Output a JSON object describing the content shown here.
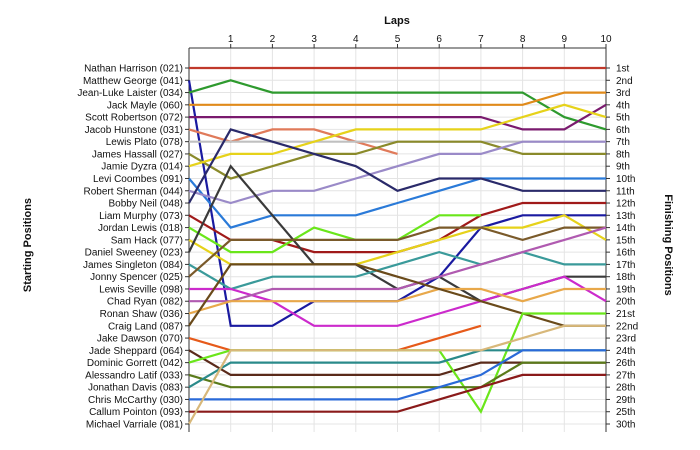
{
  "chart_data": {
    "type": "line",
    "title": "",
    "xlabel": "Laps",
    "ylabel_left": "Starting Positions",
    "ylabel_right": "Finishing Positions",
    "x": [
      0,
      1,
      2,
      3,
      4,
      5,
      6,
      7,
      8,
      9,
      10
    ],
    "x_tick_labels": [
      "1",
      "2",
      "3",
      "4",
      "5",
      "6",
      "7",
      "8",
      "9",
      "10"
    ],
    "ylim": [
      1,
      30
    ],
    "starting_labels": [
      "Nathan Harrison (021)",
      "Matthew George (041)",
      "Jean-Luke Laister (034)",
      "Jack Mayle (060)",
      "Scott Robertson (072)",
      "Jacob Hunstone (031)",
      "Lewis Plato (078)",
      "James Hassall (027)",
      "Jamie Dyzra (014)",
      "Levi Coombes (091)",
      "Robert Sherman (044)",
      "Bobby Neil (048)",
      "Liam Murphy (073)",
      "Jordan Lewis (018)",
      "Sam Hack (077)",
      "Daniel Sweeney (023)",
      "James Singleton (084)",
      "Jonny Spencer (025)",
      "Lewis Seville (098)",
      "Chad Ryan (082)",
      "Ronan Shaw (036)",
      "Craig Land (087)",
      "Jake Dawson (070)",
      "Jade Sheppard (064)",
      "Dominic Gorrett (042)",
      "Alessandro Latif (033)",
      "Jonathan Davis (083)",
      "Chris McCarthy (030)",
      "Callum Pointon (093)",
      "Michael Varriale (081)"
    ],
    "finishing_labels": [
      "1st",
      "2nd",
      "3rd",
      "4th",
      "5th",
      "6th",
      "7th",
      "8th",
      "9th",
      "10th",
      "11th",
      "12th",
      "13th",
      "14th",
      "15th",
      "16th",
      "17th",
      "18th",
      "19th",
      "20th",
      "21st",
      "22nd",
      "23rd",
      "24th",
      "26th",
      "27th",
      "28th",
      "29th",
      "25th",
      "30th"
    ],
    "series": [
      {
        "color": "#c0392b",
        "values": [
          1,
          1,
          1,
          1,
          1,
          1,
          1,
          1,
          1,
          1,
          1
        ]
      },
      {
        "color": "#1a1aa0",
        "values": [
          2,
          22,
          22,
          20,
          20,
          20,
          18,
          14,
          13,
          13,
          13
        ]
      },
      {
        "color": "#2e9a2e",
        "values": [
          3,
          2,
          3,
          3,
          3,
          3,
          3,
          3,
          3,
          5,
          6
        ]
      },
      {
        "color": "#e08a1a",
        "values": [
          4,
          4,
          4,
          4,
          4,
          4,
          4,
          4,
          4,
          3,
          3
        ]
      },
      {
        "color": "#7a1a6e",
        "values": [
          5,
          5,
          5,
          5,
          5,
          5,
          5,
          5,
          6,
          6,
          4
        ]
      },
      {
        "color": "#e07a5a",
        "values": [
          6,
          7,
          6,
          6,
          7,
          8,
          null,
          null,
          null,
          null,
          null
        ]
      },
      {
        "color": "#c0c0c0",
        "values": [
          7,
          7,
          7,
          7,
          7,
          7,
          7,
          7,
          7,
          7,
          7
        ]
      },
      {
        "color": "#8a8a2a",
        "values": [
          8,
          10,
          9,
          8,
          8,
          7,
          7,
          7,
          8,
          8,
          8
        ]
      },
      {
        "color": "#e6d21a",
        "values": [
          9,
          8,
          8,
          7,
          6,
          6,
          6,
          6,
          5,
          4,
          5
        ]
      },
      {
        "color": "#2a7ad8",
        "values": [
          10,
          14,
          13,
          13,
          13,
          12,
          11,
          10,
          10,
          10,
          10
        ]
      },
      {
        "color": "#9a8ac8",
        "values": [
          11,
          12,
          11,
          11,
          10,
          9,
          8,
          8,
          7,
          7,
          7
        ]
      },
      {
        "color": "#2a2a6a",
        "values": [
          12,
          6,
          7,
          8,
          9,
          11,
          10,
          10,
          11,
          11,
          11
        ]
      },
      {
        "color": "#a01a1a",
        "values": [
          13,
          15,
          15,
          16,
          16,
          16,
          15,
          13,
          12,
          12,
          12
        ]
      },
      {
        "color": "#6ae61a",
        "values": [
          14,
          16,
          16,
          14,
          15,
          15,
          13,
          13,
          null,
          null,
          null
        ]
      },
      {
        "color": "#e6d21a",
        "values": [
          15,
          17,
          17,
          17,
          17,
          16,
          15,
          14,
          14,
          13,
          15
        ]
      },
      {
        "color": "#3a3a3a",
        "values": [
          16,
          9,
          13,
          17,
          17,
          19,
          18,
          20,
          19,
          18,
          18
        ]
      },
      {
        "color": "#3a9a9a",
        "values": [
          17,
          19,
          18,
          18,
          18,
          17,
          16,
          17,
          16,
          17,
          17
        ]
      },
      {
        "color": "#7a5a2a",
        "values": [
          18,
          15,
          15,
          15,
          15,
          15,
          14,
          14,
          15,
          14,
          14
        ]
      },
      {
        "color": "#cc2acc",
        "values": [
          19,
          19,
          20,
          22,
          22,
          22,
          21,
          20,
          19,
          18,
          20
        ]
      },
      {
        "color": "#b05ab0",
        "values": [
          20,
          20,
          19,
          19,
          19,
          19,
          18,
          17,
          16,
          15,
          14
        ]
      },
      {
        "color": "#e8a84a",
        "values": [
          21,
          20,
          20,
          20,
          20,
          20,
          19,
          19,
          20,
          19,
          19
        ]
      },
      {
        "color": "#6a4a1a",
        "values": [
          22,
          17,
          17,
          17,
          17,
          18,
          19,
          20,
          21,
          22,
          22
        ]
      },
      {
        "color": "#e65a1a",
        "values": [
          23,
          24,
          24,
          24,
          24,
          24,
          23,
          22,
          null,
          null,
          null
        ]
      },
      {
        "color": "#5a2a1a",
        "values": [
          24,
          26,
          26,
          26,
          26,
          26,
          26,
          25,
          25,
          25,
          25
        ]
      },
      {
        "color": "#6ae61a",
        "values": [
          25,
          24,
          24,
          24,
          24,
          24,
          24,
          29,
          21,
          21,
          21
        ]
      },
      {
        "color": "#5a7a1a",
        "values": [
          26,
          27,
          27,
          27,
          27,
          27,
          27,
          27,
          25,
          25,
          25
        ]
      },
      {
        "color": "#2a8a8a",
        "values": [
          27,
          25,
          25,
          25,
          25,
          25,
          25,
          24,
          24,
          24,
          24
        ]
      },
      {
        "color": "#2a6ad8",
        "values": [
          28,
          28,
          28,
          28,
          28,
          28,
          27,
          26,
          24,
          24,
          24
        ]
      },
      {
        "color": "#8a1a1a",
        "values": [
          29,
          29,
          29,
          29,
          29,
          29,
          28,
          27,
          26,
          26,
          26
        ]
      },
      {
        "color": "#d8b87a",
        "values": [
          30,
          24,
          24,
          24,
          24,
          24,
          24,
          24,
          23,
          22,
          22
        ]
      }
    ]
  }
}
